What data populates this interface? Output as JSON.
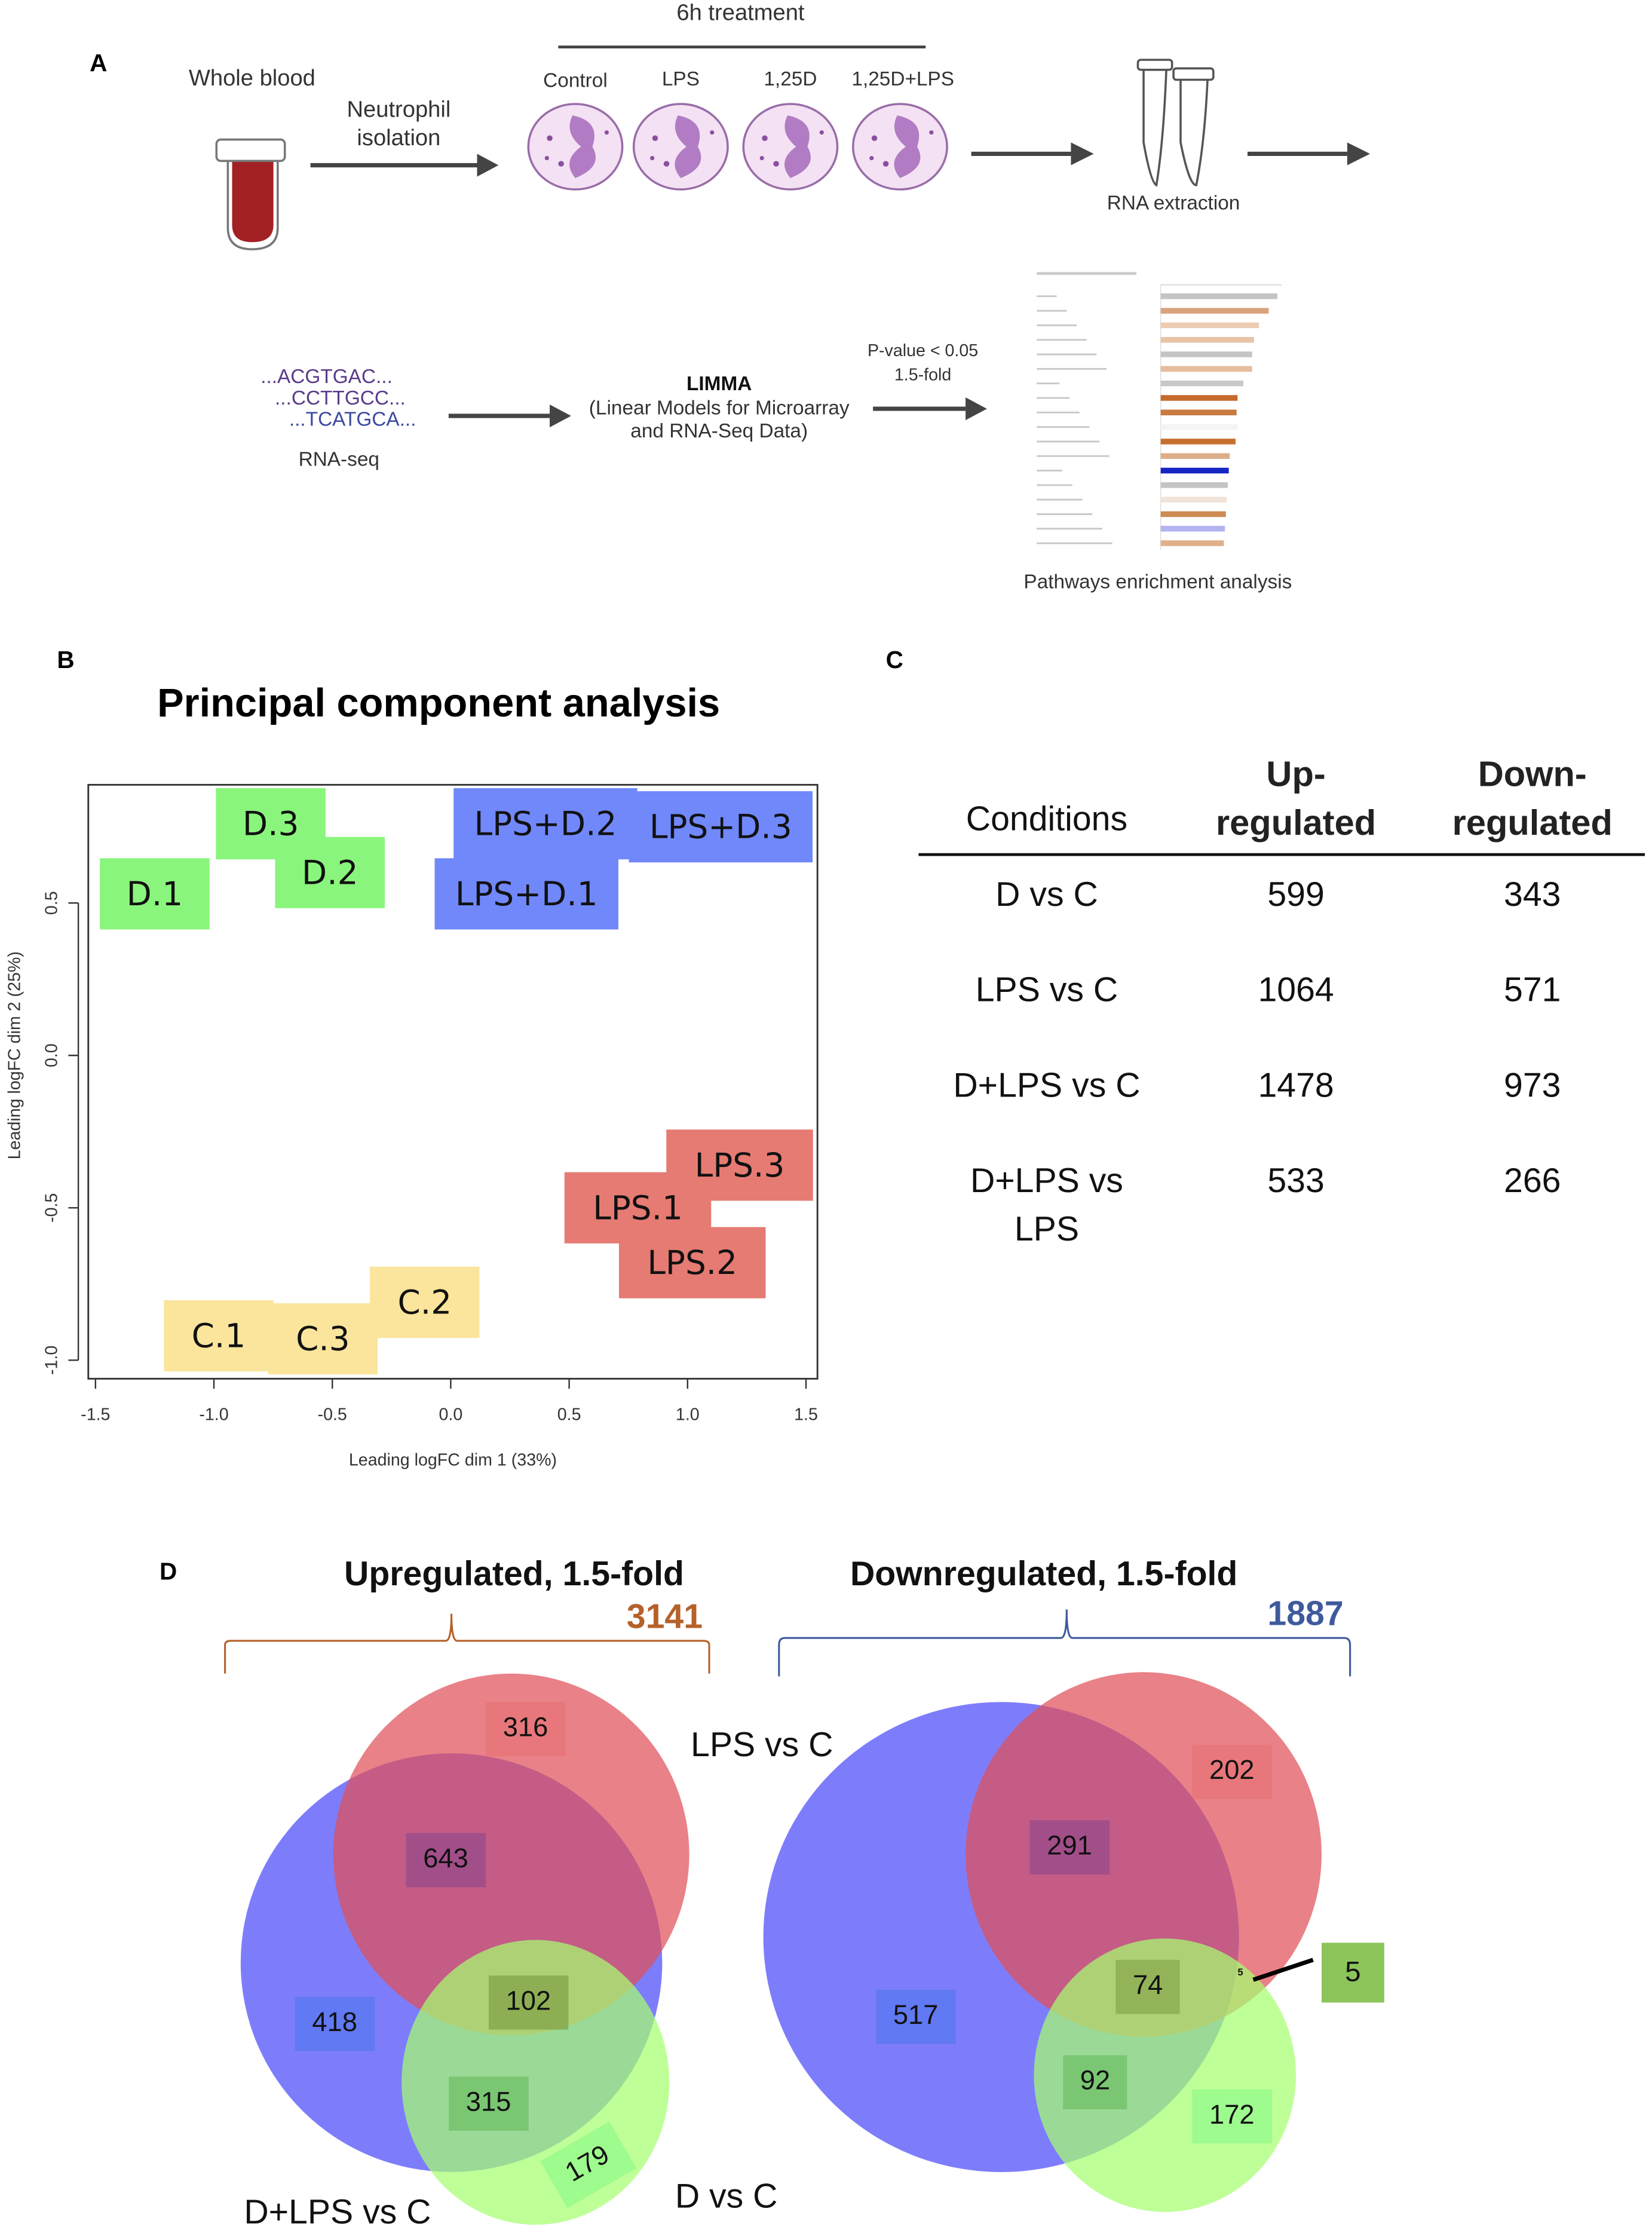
{
  "panel_a": {
    "letter": "A",
    "whole_blood": "Whole blood",
    "isolation": [
      "Neutrophil",
      "isolation"
    ],
    "treatment_title": "6h treatment",
    "treatments": [
      "Control",
      "LPS",
      "1,25D",
      "1,25D+LPS"
    ],
    "rna_extraction": "RNA extraction",
    "sequences": [
      "...ACGTGAC...",
      "...CCTTGCC...",
      "...TCATGCA..."
    ],
    "rna_seq": "RNA-seq",
    "limma_title": "LIMMA",
    "limma_desc": [
      "(Linear Models for Microarray",
      "and RNA-Seq Data)"
    ],
    "filter": [
      "P-value < 0.05",
      "1.5-fold"
    ],
    "pathways_label": "Pathways enrichment analysis",
    "pathway_thumbnail": {
      "bar_values": [
        12,
        11.1,
        10.1,
        9.6,
        9.4,
        9.4,
        8.5,
        7.9,
        7.8,
        7.9,
        7.7,
        7.1,
        7.0,
        6.9,
        6.8,
        6.7,
        6.6,
        6.5
      ],
      "bar_colors": [
        "#c4c4c4",
        "#d9a27c",
        "#ecccb2",
        "#e8c3a6",
        "#c4c4c4",
        "#e6bd9e",
        "#c8c8c8",
        "#c66a2c",
        "#c87a40",
        "#f4f4f4",
        "#c6702f",
        "#dcae8a",
        "#1626c4",
        "#c4c4c4",
        "#f0e3da",
        "#cc8a52",
        "#b3b3f0",
        "#e0b08a"
      ]
    }
  },
  "panel_b": {
    "letter": "B",
    "title": "Principal component analysis"
  },
  "chart_data": {
    "type": "scatter",
    "title": "Principal component analysis",
    "xlabel": "Leading logFC dim 1 (33%)",
    "ylabel": "Leading logFC dim 2 (25%)",
    "xlim": [
      -1.5,
      1.5
    ],
    "ylim": [
      -1.05,
      0.9
    ],
    "xticks": [
      "-1.5",
      "-1.0",
      "-0.5",
      "0.0",
      "0.5",
      "1.0",
      "1.5"
    ],
    "xtick_values": [
      -1.5,
      -1.0,
      -0.5,
      0.0,
      0.5,
      1.0,
      1.5
    ],
    "yticks": [
      "-1.0",
      "-0.5",
      "0.0",
      "0.5"
    ],
    "ytick_values": [
      -1.0,
      -0.5,
      0.0,
      0.5
    ],
    "points": [
      {
        "label": "D.1",
        "x": -1.25,
        "y": 0.53,
        "group": "D"
      },
      {
        "label": "D.3",
        "x": -0.76,
        "y": 0.76,
        "group": "D"
      },
      {
        "label": "D.2",
        "x": -0.51,
        "y": 0.6,
        "group": "D"
      },
      {
        "label": "LPS+D.2",
        "x": 0.4,
        "y": 0.76,
        "group": "LPS+D"
      },
      {
        "label": "LPS+D.3",
        "x": 1.14,
        "y": 0.75,
        "group": "LPS+D"
      },
      {
        "label": "LPS+D.1",
        "x": 0.32,
        "y": 0.53,
        "group": "LPS+D"
      },
      {
        "label": "LPS.3",
        "x": 1.22,
        "y": -0.36,
        "group": "LPS"
      },
      {
        "label": "LPS.1",
        "x": 0.79,
        "y": -0.5,
        "group": "LPS"
      },
      {
        "label": "LPS.2",
        "x": 1.02,
        "y": -0.68,
        "group": "LPS"
      },
      {
        "label": "C.1",
        "x": -0.98,
        "y": -0.92,
        "group": "C"
      },
      {
        "label": "C.3",
        "x": -0.54,
        "y": -0.93,
        "group": "C"
      },
      {
        "label": "C.2",
        "x": -0.11,
        "y": -0.81,
        "group": "C"
      }
    ],
    "group_colors": {
      "D": "#8af57c",
      "LPS+D": "#7088fa",
      "LPS": "#e57b73",
      "C": "#fbe59c"
    }
  },
  "panel_c": {
    "letter": "C",
    "headers": {
      "conditions": "Conditions",
      "up": [
        "Up-",
        "regulated"
      ],
      "down": [
        "Down-",
        "regulated"
      ]
    },
    "rows": [
      {
        "condition": [
          "D vs C"
        ],
        "up": "599",
        "down": "343"
      },
      {
        "condition": [
          "LPS vs C"
        ],
        "up": "1064",
        "down": "571"
      },
      {
        "condition": [
          "D+LPS vs C"
        ],
        "up": "1478",
        "down": "973"
      },
      {
        "condition": [
          "D+LPS vs",
          "LPS"
        ],
        "up": "533",
        "down": "266"
      }
    ]
  },
  "panel_d": {
    "letter": "D",
    "up": {
      "title": "Upregulated, 1.5-fold",
      "total": "3141",
      "color": "#b5612a",
      "labels": {
        "lps": "LPS vs C",
        "dlps": "D+LPS vs C",
        "d": "D vs C"
      },
      "counts": {
        "lps_only": "316",
        "lps_dlps": "643",
        "dlps_only": "418",
        "all": "102",
        "dlps_d": "315",
        "d_only": "179"
      }
    },
    "down": {
      "title": "Downregulated, 1.5-fold",
      "total": "1887",
      "color": "#3f5a9c",
      "counts": {
        "lps_only": "202",
        "lps_dlps": "291",
        "all": "74",
        "dlps_only": "517",
        "dlps_d": "92",
        "d_only": "172",
        "lps_d": "5",
        "lps_d_small": "5"
      }
    }
  }
}
